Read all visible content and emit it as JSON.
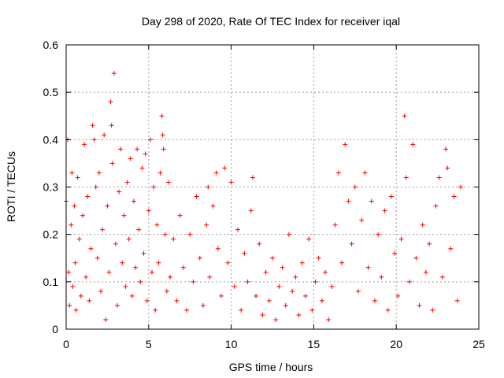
{
  "chart_data": {
    "type": "scatter",
    "title": "Day 298 of 2020, Rate Of TEC Index for receiver iqal",
    "xlabel": "GPS time / hours",
    "ylabel": "ROTI / TECUs",
    "xlim": [
      0,
      25
    ],
    "ylim": [
      0,
      0.6
    ],
    "x_ticks": [
      0,
      5,
      10,
      15,
      20,
      25
    ],
    "x_tick_labels": [
      "0",
      "5",
      "10",
      "15",
      "20",
      "25"
    ],
    "y_ticks": [
      0,
      0.1,
      0.2,
      0.3,
      0.4,
      0.5,
      0.6
    ],
    "y_tick_labels": [
      "0",
      "0.1",
      "0.2",
      "0.3",
      "0.4",
      "0.5",
      "0.6"
    ],
    "grid": true,
    "marker": "plus",
    "color": "#ff0000",
    "series": [
      {
        "name": "ROTI",
        "points": [
          [
            0.0,
            0.27
          ],
          [
            0.1,
            0.4
          ],
          [
            0.15,
            0.12
          ],
          [
            0.2,
            0.05
          ],
          [
            0.3,
            0.22
          ],
          [
            0.35,
            0.33
          ],
          [
            0.4,
            0.09
          ],
          [
            0.5,
            0.26
          ],
          [
            0.55,
            0.14
          ],
          [
            0.6,
            0.04
          ],
          [
            0.7,
            0.32
          ],
          [
            0.8,
            0.19
          ],
          [
            0.9,
            0.07
          ],
          [
            1.0,
            0.24
          ],
          [
            1.1,
            0.39
          ],
          [
            1.2,
            0.11
          ],
          [
            1.3,
            0.28
          ],
          [
            1.4,
            0.06
          ],
          [
            1.5,
            0.17
          ],
          [
            1.6,
            0.43
          ],
          [
            1.7,
            0.4
          ],
          [
            1.8,
            0.3
          ],
          [
            1.9,
            0.15
          ],
          [
            2.0,
            0.33
          ],
          [
            2.1,
            0.08
          ],
          [
            2.2,
            0.21
          ],
          [
            2.3,
            0.41
          ],
          [
            2.4,
            0.02
          ],
          [
            2.5,
            0.26
          ],
          [
            2.6,
            0.12
          ],
          [
            2.7,
            0.48
          ],
          [
            2.75,
            0.43
          ],
          [
            2.8,
            0.35
          ],
          [
            2.9,
            0.54
          ],
          [
            3.0,
            0.18
          ],
          [
            3.1,
            0.05
          ],
          [
            3.2,
            0.29
          ],
          [
            3.3,
            0.38
          ],
          [
            3.4,
            0.14
          ],
          [
            3.5,
            0.24
          ],
          [
            3.6,
            0.09
          ],
          [
            3.7,
            0.31
          ],
          [
            3.8,
            0.19
          ],
          [
            3.9,
            0.36
          ],
          [
            4.0,
            0.07
          ],
          [
            4.1,
            0.27
          ],
          [
            4.2,
            0.13
          ],
          [
            4.3,
            0.38
          ],
          [
            4.4,
            0.21
          ],
          [
            4.5,
            0.1
          ],
          [
            4.6,
            0.34
          ],
          [
            4.7,
            0.16
          ],
          [
            4.8,
            0.37
          ],
          [
            4.9,
            0.06
          ],
          [
            5.0,
            0.25
          ],
          [
            5.1,
            0.4
          ],
          [
            5.2,
            0.12
          ],
          [
            5.3,
            0.3
          ],
          [
            5.4,
            0.04
          ],
          [
            5.5,
            0.22
          ],
          [
            5.6,
            0.14
          ],
          [
            5.7,
            0.33
          ],
          [
            5.8,
            0.45
          ],
          [
            5.85,
            0.41
          ],
          [
            5.9,
            0.38
          ],
          [
            6.0,
            0.2
          ],
          [
            6.1,
            0.08
          ],
          [
            6.2,
            0.31
          ],
          [
            6.3,
            0.11
          ],
          [
            6.5,
            0.19
          ],
          [
            6.7,
            0.06
          ],
          [
            6.9,
            0.24
          ],
          [
            7.1,
            0.13
          ],
          [
            7.3,
            0.04
          ],
          [
            7.5,
            0.2
          ],
          [
            7.7,
            0.1
          ],
          [
            7.9,
            0.28
          ],
          [
            8.1,
            0.15
          ],
          [
            8.3,
            0.05
          ],
          [
            8.5,
            0.22
          ],
          [
            8.6,
            0.3
          ],
          [
            8.7,
            0.11
          ],
          [
            8.9,
            0.26
          ],
          [
            9.1,
            0.33
          ],
          [
            9.2,
            0.17
          ],
          [
            9.4,
            0.07
          ],
          [
            9.6,
            0.34
          ],
          [
            9.8,
            0.14
          ],
          [
            10.0,
            0.31
          ],
          [
            10.2,
            0.09
          ],
          [
            10.4,
            0.21
          ],
          [
            10.6,
            0.04
          ],
          [
            10.8,
            0.16
          ],
          [
            11.0,
            0.1
          ],
          [
            11.2,
            0.25
          ],
          [
            11.3,
            0.32
          ],
          [
            11.5,
            0.07
          ],
          [
            11.7,
            0.18
          ],
          [
            11.9,
            0.03
          ],
          [
            12.1,
            0.12
          ],
          [
            12.3,
            0.06
          ],
          [
            12.5,
            0.15
          ],
          [
            12.7,
            0.02
          ],
          [
            12.9,
            0.09
          ],
          [
            13.1,
            0.13
          ],
          [
            13.3,
            0.05
          ],
          [
            13.5,
            0.2
          ],
          [
            13.7,
            0.08
          ],
          [
            13.9,
            0.11
          ],
          [
            14.1,
            0.03
          ],
          [
            14.3,
            0.14
          ],
          [
            14.5,
            0.07
          ],
          [
            14.7,
            0.19
          ],
          [
            14.9,
            0.04
          ],
          [
            15.1,
            0.1
          ],
          [
            15.3,
            0.15
          ],
          [
            15.5,
            0.06
          ],
          [
            15.7,
            0.12
          ],
          [
            15.9,
            0.02
          ],
          [
            16.1,
            0.09
          ],
          [
            16.3,
            0.22
          ],
          [
            16.5,
            0.33
          ],
          [
            16.7,
            0.14
          ],
          [
            16.9,
            0.39
          ],
          [
            17.1,
            0.27
          ],
          [
            17.3,
            0.18
          ],
          [
            17.5,
            0.3
          ],
          [
            17.7,
            0.08
          ],
          [
            17.9,
            0.23
          ],
          [
            18.1,
            0.33
          ],
          [
            18.3,
            0.13
          ],
          [
            18.5,
            0.27
          ],
          [
            18.7,
            0.06
          ],
          [
            18.9,
            0.2
          ],
          [
            19.1,
            0.11
          ],
          [
            19.3,
            0.25
          ],
          [
            19.5,
            0.04
          ],
          [
            19.7,
            0.28
          ],
          [
            19.9,
            0.16
          ],
          [
            20.1,
            0.07
          ],
          [
            20.3,
            0.19
          ],
          [
            20.5,
            0.45
          ],
          [
            20.6,
            0.32
          ],
          [
            20.8,
            0.1
          ],
          [
            21.0,
            0.39
          ],
          [
            21.2,
            0.15
          ],
          [
            21.4,
            0.05
          ],
          [
            21.6,
            0.22
          ],
          [
            21.8,
            0.12
          ],
          [
            22.0,
            0.18
          ],
          [
            22.2,
            0.04
          ],
          [
            22.4,
            0.26
          ],
          [
            22.6,
            0.32
          ],
          [
            22.8,
            0.11
          ],
          [
            23.0,
            0.38
          ],
          [
            23.1,
            0.34
          ],
          [
            23.3,
            0.17
          ],
          [
            23.5,
            0.28
          ],
          [
            23.7,
            0.06
          ],
          [
            23.9,
            0.3
          ]
        ]
      }
    ]
  }
}
